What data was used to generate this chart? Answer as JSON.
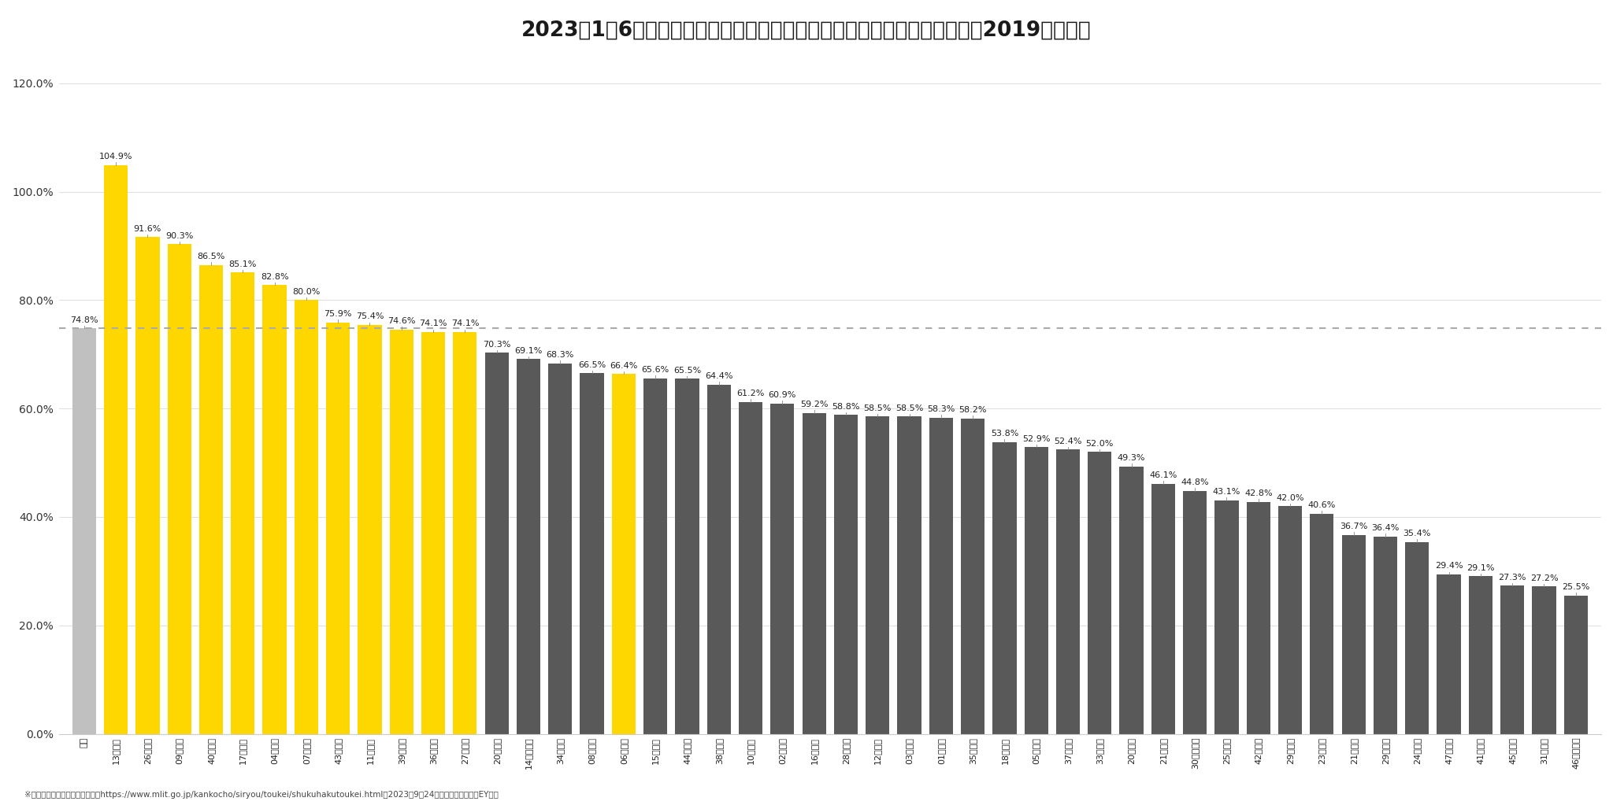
{
  "title": "2023年1～6月のインバウンド観光客延べ宿泊者　（人泊、都道府県別）：2019年同期比",
  "footnote": "※　観光庁「宿泊旅行統計調査」https://www.mlit.go.jp/kankocho/siryou/toukei/shukuhakutoukei.html（2023年9月24日アクセス）を基にEY作成",
  "reference_line": 74.8,
  "values": [
    74.8,
    104.9,
    91.6,
    90.3,
    86.5,
    85.1,
    82.8,
    80.0,
    75.9,
    75.4,
    74.6,
    74.1,
    74.1,
    70.3,
    69.1,
    68.3,
    66.5,
    66.4,
    65.6,
    65.5,
    64.4,
    61.2,
    60.9,
    59.2,
    58.8,
    58.5,
    58.5,
    58.3,
    58.2,
    53.8,
    52.9,
    52.4,
    52.0,
    49.3,
    46.1,
    44.8,
    43.1,
    42.8,
    42.0,
    40.6,
    36.7,
    36.4,
    35.4,
    29.4,
    29.1,
    27.3,
    27.2,
    25.5
  ],
  "x_labels": [
    "全体",
    "13東京都",
    "26京都府",
    "09栃木県",
    "40福岡県",
    "17石川県",
    "04宮城県",
    "07福島県",
    "43熊本県",
    "11埼玉県",
    "39高知県",
    "36徳島県",
    "27大阪府",
    "20長野県",
    "14神奈川県",
    "34広島県",
    "08茨城県",
    "06山形県",
    "15新潟県",
    "44大分県",
    "38愛媛県",
    "10群馬県",
    "02青森県",
    "16富山県",
    "28兵庫県",
    "12千葉県",
    "03岩手県",
    "01北海道",
    "35山口県",
    "18福井県",
    "05秋田県",
    "37香川県",
    "33岡山県",
    "20長野県",
    "21岐阜県",
    "30和歌山県",
    "25滋賀県",
    "42長崎県",
    "29奈良県",
    "23愛知県",
    "21岐阜県",
    "29奈良県",
    "24三重県",
    "47沖縄県",
    "41佐賀県",
    "45宮崎県",
    "31鳥取県",
    "46鹿児島県"
  ],
  "bar_colors_flag": [
    "gray",
    "yellow",
    "yellow",
    "yellow",
    "yellow",
    "yellow",
    "yellow",
    "yellow",
    "yellow",
    "yellow",
    "yellow",
    "yellow",
    "yellow",
    "dark",
    "dark",
    "dark",
    "dark",
    "yellow",
    "dark",
    "dark",
    "dark",
    "dark",
    "dark",
    "dark",
    "dark",
    "dark",
    "dark",
    "dark",
    "dark",
    "dark",
    "dark",
    "dark",
    "dark",
    "dark",
    "dark",
    "dark",
    "dark",
    "dark",
    "dark",
    "dark",
    "dark",
    "dark",
    "dark",
    "dark",
    "dark",
    "dark",
    "dark",
    "dark"
  ],
  "color_gray": "#c0c0c0",
  "color_yellow": "#FFD700",
  "color_dark": "#595959",
  "dashed_line_color": "#aaaaaa",
  "bg_color": "#ffffff",
  "title_fontsize": 19,
  "label_fontsize": 8,
  "value_fontsize": 8,
  "ytick_labels": [
    "0.0%",
    "20.0%",
    "40.0%",
    "60.0%",
    "80.0%",
    "100.0%",
    "120.0%"
  ],
  "ytick_values": [
    0,
    20,
    40,
    60,
    80,
    100,
    120
  ],
  "ylim": [
    0,
    125
  ]
}
